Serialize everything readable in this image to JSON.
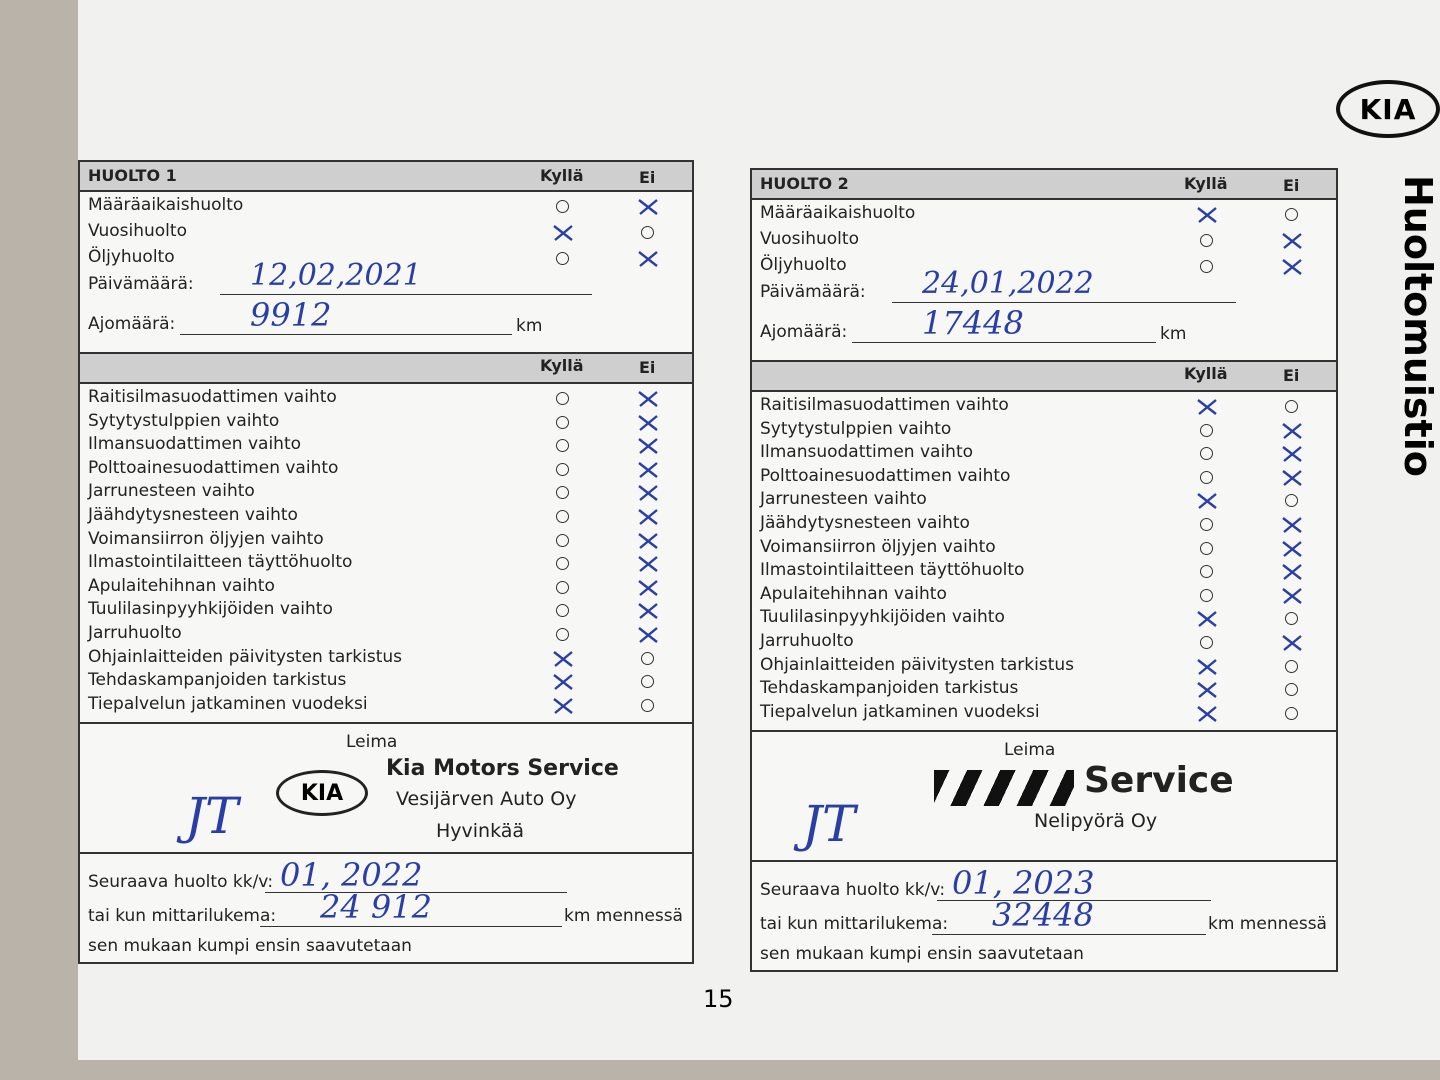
{
  "header": {
    "logo": "KIA",
    "side_title": "Huoltomuistio",
    "page_number": "15"
  },
  "forms": [
    {
      "title": "HUOLTO 1",
      "yes": "Kyllä",
      "no": "Ei",
      "top_items": [
        "Määräaikaishuolto",
        "Vuosihuolto",
        "Öljyhuolto"
      ],
      "date_label": "Päivämäärä:",
      "date": "12,02,2021",
      "mileage_label": "Ajomäärä:",
      "mileage": "9912",
      "unit": "km",
      "items": [
        "Raitisilmasuodattimen vaihto",
        "Sytytystulppien vaihto",
        "Ilmansuodattimen vaihto",
        "Polttoainesuodattimen vaihto",
        "Jarrunesteen vaihto",
        "Jäähdytysnesteen vaihto",
        "Voimansiirron öljyjen vaihto",
        "Ilmastointilaitteen täyttöhuolto",
        "Apulaitehihnan vaihto",
        "Tuulilasinpyyhkijöiden vaihto",
        "Jarruhuolto",
        "Ohjainlaitteiden päivitysten tarkistus",
        "Tehdaskampanjoiden tarkistus",
        "Tiepalvelun jatkaminen vuodeksi"
      ],
      "stamp_label": "Leima",
      "stamp_logo": "KIA",
      "stamp_lines": [
        "Kia Motors Service",
        "Vesijärven Auto Oy",
        "Hyvinkää"
      ],
      "signature": "JT",
      "next_label": "Seuraava huolto kk/v:",
      "next_date": "01, 2022",
      "km_label": "tai kun mittarilukema:",
      "next_km": "24 912",
      "km_suffix": "km mennessä",
      "note": "sen mukaan kumpi ensin saavutetaan"
    },
    {
      "title": "HUOLTO 2",
      "yes": "Kyllä",
      "no": "Ei",
      "top_items": [
        "Määräaikaishuolto",
        "Vuosihuolto",
        "Öljyhuolto"
      ],
      "date_label": "Päivämäärä:",
      "date": "24,01,2022",
      "mileage_label": "Ajomäärä:",
      "mileage": "17448",
      "unit": "km",
      "items": [
        "Raitisilmasuodattimen vaihto",
        "Sytytystulppien vaihto",
        "Ilmansuodattimen vaihto",
        "Polttoainesuodattimen vaihto",
        "Jarrunesteen vaihto",
        "Jäähdytysnesteen vaihto",
        "Voimansiirron öljyjen vaihto",
        "Ilmastointilaitteen täyttöhuolto",
        "Apulaitehihnan vaihto",
        "Tuulilasinpyyhkijöiden vaihto",
        "Jarruhuolto",
        "Ohjainlaitteiden päivitysten tarkistus",
        "Tehdaskampanjoiden tarkistus",
        "Tiepalvelun jatkaminen vuodeksi"
      ],
      "stamp_label": "Leima",
      "stamp_lines": [
        "Service",
        "Nelipyörä Oy"
      ],
      "signature": "JT",
      "next_label": "Seuraava huolto kk/v:",
      "next_date": "01, 2023",
      "km_label": "tai kun mittarilukema:",
      "next_km": "32448",
      "km_suffix": "km mennessä",
      "note": "sen mukaan kumpi ensin saavutetaan"
    }
  ]
}
